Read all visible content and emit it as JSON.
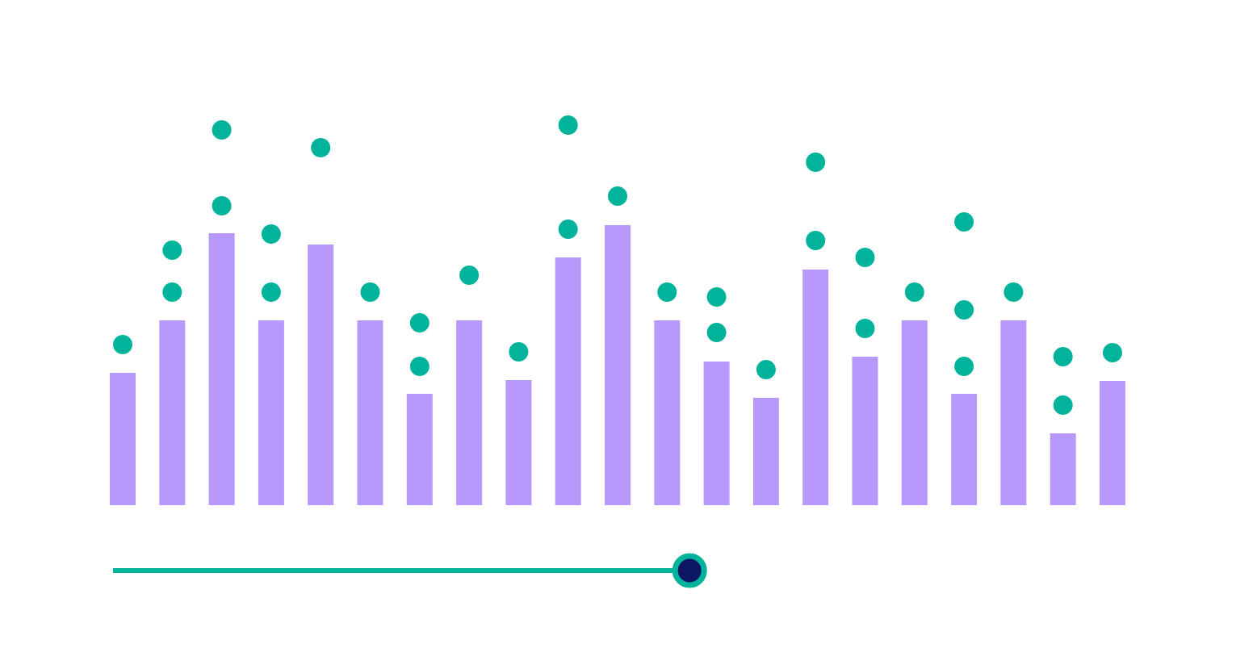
{
  "chart_data": {
    "type": "bar",
    "color": "#b898fb",
    "dot_color": "#00b39a",
    "ylim": [
      0,
      600
    ],
    "values": [
      164,
      229,
      337,
      229,
      323,
      229,
      138,
      229,
      155,
      307,
      347,
      229,
      178,
      133,
      292,
      184,
      229,
      138,
      229,
      89,
      154
    ],
    "dots": [
      [
        199
      ],
      [
        264,
        316
      ],
      [
        371,
        465
      ],
      [
        264,
        336
      ],
      [
        443
      ],
      [
        264
      ],
      [
        172,
        226
      ],
      [
        285
      ],
      [
        190
      ],
      [
        342,
        471
      ],
      [
        383
      ],
      [
        264
      ],
      [
        214,
        258
      ],
      [
        168
      ],
      [
        328,
        425
      ],
      [
        219,
        307
      ],
      [
        264
      ],
      [
        172,
        242,
        351
      ],
      [
        264
      ],
      [
        124,
        184
      ],
      [
        189
      ]
    ],
    "slider": {
      "value": 57,
      "range": [
        0,
        100
      ],
      "color": "#00b39a",
      "thumb_color": "#0e1766"
    }
  }
}
